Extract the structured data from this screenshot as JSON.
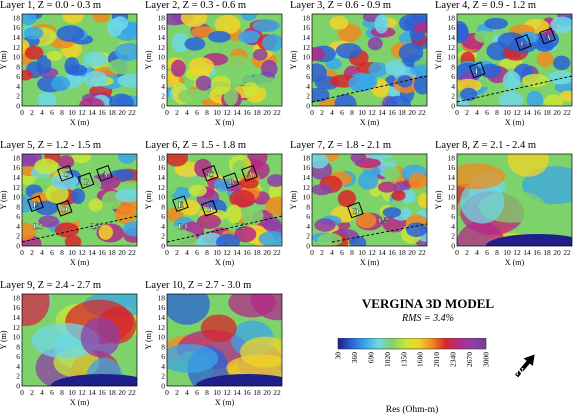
{
  "layers": [
    {
      "title": "Layer 1, Z = 0.0 - 0.3 m",
      "blue_dominant": 0.55,
      "labels": []
    },
    {
      "title": "Layer 2, Z = 0.3 - 0.6 m",
      "blue_dominant": 0.25,
      "labels": []
    },
    {
      "title": "Layer 3, Z = 0.6 - 0.9 m",
      "blue_dominant": 0.6,
      "labels": []
    },
    {
      "title": "Layer 4, Z = 0.9 - 1.2 m",
      "blue_dominant": 0.5,
      "labels": [
        "C",
        "A",
        "E"
      ]
    },
    {
      "title": "Layer 5, Z = 1.2 - 1.5 m",
      "blue_dominant": 0.15,
      "labels": [
        "C",
        "B",
        "A",
        "E",
        "D",
        "L1",
        "L2"
      ]
    },
    {
      "title": "Layer 6, Z = 1.5 - 1.8 m",
      "blue_dominant": 0.2,
      "labels": [
        "C",
        "B",
        "A",
        "E",
        "D",
        "L1",
        "L2"
      ]
    },
    {
      "title": "Layer 7, Z = 1.8 - 2.1 m",
      "blue_dominant": 0.3,
      "labels": [
        "D",
        "L2"
      ]
    },
    {
      "title": "Layer 8, Z = 2.1 - 2.4 m",
      "blue_dominant": 0.4,
      "labels": []
    },
    {
      "title": "Layer 9, Z = 2.4 - 2.7 m",
      "blue_dominant": 0.4,
      "labels": []
    },
    {
      "title": "Layer 10, Z = 2.7 - 3.0 m",
      "blue_dominant": 0.4,
      "labels": []
    }
  ],
  "axes": {
    "xlabel": "X (m)",
    "ylabel": "Y (m)",
    "xticks": [
      "0",
      "2",
      "4",
      "6",
      "8",
      "10",
      "12",
      "14",
      "16",
      "18",
      "20",
      "22"
    ],
    "yticks": [
      "0",
      "2",
      "4",
      "6",
      "8",
      "10",
      "12",
      "14",
      "16",
      "18"
    ]
  },
  "model_title": "VERGINA 3D MODEL",
  "rms": "RMS = 3.4%",
  "colorbar": {
    "ticks": [
      "30",
      "360",
      "690",
      "1020",
      "1350",
      "1680",
      "2010",
      "2340",
      "2670",
      "3000"
    ],
    "label": "Res (Ohm-m)",
    "colors": [
      "#1e1e8c",
      "#2a62d6",
      "#3aa6e8",
      "#6fd7e6",
      "#7dd36a",
      "#c9e53a",
      "#f2d428",
      "#f08a1e",
      "#d8262c",
      "#b32a8a",
      "#8c3fa8",
      "#7a3c96"
    ]
  },
  "north_arrow": "N"
}
